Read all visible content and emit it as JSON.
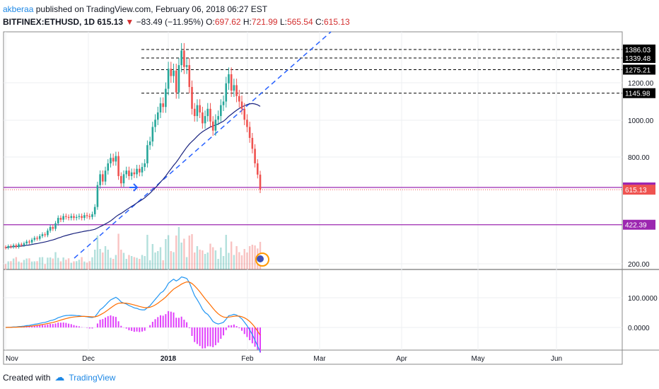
{
  "header": {
    "author": "akberaa",
    "published": "published on TradingView.com, February 06, 2018 06:27 EST",
    "symbol": "BITFINEX:ETHUSD, 1D",
    "last": "615.13",
    "change": "−83.49 (−11.95%)",
    "o_label": "O:",
    "o_value": "697.62",
    "h_label": "H:",
    "h_value": "721.99",
    "l_label": "L:",
    "l_value": "565.54",
    "c_label": "C:",
    "c_value": "615.13"
  },
  "footer": {
    "created": "Created with",
    "brand": "TradingView"
  },
  "colors": {
    "up": "#26a69a",
    "down": "#ef5350",
    "trend": "#2962ff",
    "hline": "#000000",
    "support": "#9c27b0",
    "ma": "#1a237e",
    "macd": "#2196f3",
    "signal": "#ff6d00",
    "hist": "#e040fb"
  },
  "chart_data": {
    "type": "candlestick",
    "x_ticks": [
      "Nov",
      "Dec",
      "2018",
      "Feb",
      "Mar",
      "Apr",
      "May",
      "Jun"
    ],
    "price_axis_ticks": [
      "1200.00",
      "1000.00",
      "800.00",
      "200.00"
    ],
    "macd_axis_ticks": [
      "100.0000",
      "0.0000"
    ],
    "horizontal_levels": [
      1386.03,
      1339.48,
      1275.21,
      1145.98
    ],
    "support_levels": [
      627.55,
      422.39
    ],
    "last_price": 615.13,
    "ohlc_approx": [
      {
        "o": 300,
        "c": 295
      },
      {
        "o": 295,
        "c": 305
      },
      {
        "o": 305,
        "c": 300
      },
      {
        "o": 300,
        "c": 310
      },
      {
        "o": 310,
        "c": 300
      },
      {
        "o": 300,
        "c": 315
      },
      {
        "o": 315,
        "c": 310
      },
      {
        "o": 310,
        "c": 320
      },
      {
        "o": 320,
        "c": 330
      },
      {
        "o": 330,
        "c": 325
      },
      {
        "o": 325,
        "c": 340
      },
      {
        "o": 340,
        "c": 350
      },
      {
        "o": 350,
        "c": 345
      },
      {
        "o": 345,
        "c": 360
      },
      {
        "o": 360,
        "c": 370
      },
      {
        "o": 370,
        "c": 365
      },
      {
        "o": 365,
        "c": 390
      },
      {
        "o": 390,
        "c": 410
      },
      {
        "o": 410,
        "c": 400
      },
      {
        "o": 400,
        "c": 430
      },
      {
        "o": 430,
        "c": 460
      },
      {
        "o": 460,
        "c": 450
      },
      {
        "o": 450,
        "c": 470
      },
      {
        "o": 470,
        "c": 465
      },
      {
        "o": 465,
        "c": 460
      },
      {
        "o": 460,
        "c": 470
      },
      {
        "o": 470,
        "c": 460
      },
      {
        "o": 460,
        "c": 465
      },
      {
        "o": 465,
        "c": 470
      },
      {
        "o": 470,
        "c": 460
      },
      {
        "o": 460,
        "c": 475
      },
      {
        "o": 475,
        "c": 470
      },
      {
        "o": 470,
        "c": 465
      },
      {
        "o": 465,
        "c": 480
      },
      {
        "o": 480,
        "c": 520
      },
      {
        "o": 520,
        "c": 640
      },
      {
        "o": 640,
        "c": 700
      },
      {
        "o": 700,
        "c": 660
      },
      {
        "o": 660,
        "c": 720
      },
      {
        "o": 720,
        "c": 760
      },
      {
        "o": 760,
        "c": 790
      },
      {
        "o": 790,
        "c": 770
      },
      {
        "o": 770,
        "c": 800
      },
      {
        "o": 800,
        "c": 690
      },
      {
        "o": 690,
        "c": 650
      },
      {
        "o": 650,
        "c": 700
      },
      {
        "o": 700,
        "c": 720
      },
      {
        "o": 720,
        "c": 690
      },
      {
        "o": 690,
        "c": 710
      },
      {
        "o": 710,
        "c": 700
      },
      {
        "o": 700,
        "c": 730
      },
      {
        "o": 730,
        "c": 710
      },
      {
        "o": 710,
        "c": 740
      },
      {
        "o": 740,
        "c": 760
      },
      {
        "o": 760,
        "c": 860
      },
      {
        "o": 860,
        "c": 880
      },
      {
        "o": 880,
        "c": 960
      },
      {
        "o": 960,
        "c": 1000
      },
      {
        "o": 1000,
        "c": 1040
      },
      {
        "o": 1040,
        "c": 1090
      },
      {
        "o": 1090,
        "c": 1070
      },
      {
        "o": 1070,
        "c": 1170
      },
      {
        "o": 1170,
        "c": 1280
      },
      {
        "o": 1280,
        "c": 1240
      },
      {
        "o": 1240,
        "c": 1270
      },
      {
        "o": 1270,
        "c": 1150
      },
      {
        "o": 1150,
        "c": 1300
      },
      {
        "o": 1300,
        "c": 1380
      },
      {
        "o": 1380,
        "c": 1290
      },
      {
        "o": 1290,
        "c": 1300
      },
      {
        "o": 1300,
        "c": 1180
      },
      {
        "o": 1180,
        "c": 1060
      },
      {
        "o": 1060,
        "c": 1020
      },
      {
        "o": 1020,
        "c": 1080
      },
      {
        "o": 1080,
        "c": 1040
      },
      {
        "o": 1040,
        "c": 980
      },
      {
        "o": 980,
        "c": 1020
      },
      {
        "o": 1020,
        "c": 1060
      },
      {
        "o": 1060,
        "c": 990
      },
      {
        "o": 990,
        "c": 940
      },
      {
        "o": 940,
        "c": 1000
      },
      {
        "o": 1000,
        "c": 1020
      },
      {
        "o": 1020,
        "c": 1080
      },
      {
        "o": 1080,
        "c": 1100
      },
      {
        "o": 1100,
        "c": 1200
      },
      {
        "o": 1200,
        "c": 1250
      },
      {
        "o": 1250,
        "c": 1160
      },
      {
        "o": 1160,
        "c": 1190
      },
      {
        "o": 1190,
        "c": 1130
      },
      {
        "o": 1130,
        "c": 1100
      },
      {
        "o": 1100,
        "c": 1060
      },
      {
        "o": 1060,
        "c": 1000
      },
      {
        "o": 1000,
        "c": 960
      },
      {
        "o": 960,
        "c": 900
      },
      {
        "o": 900,
        "c": 840
      },
      {
        "o": 840,
        "c": 760
      },
      {
        "o": 760,
        "c": 698
      },
      {
        "o": 698,
        "c": 615
      }
    ]
  }
}
